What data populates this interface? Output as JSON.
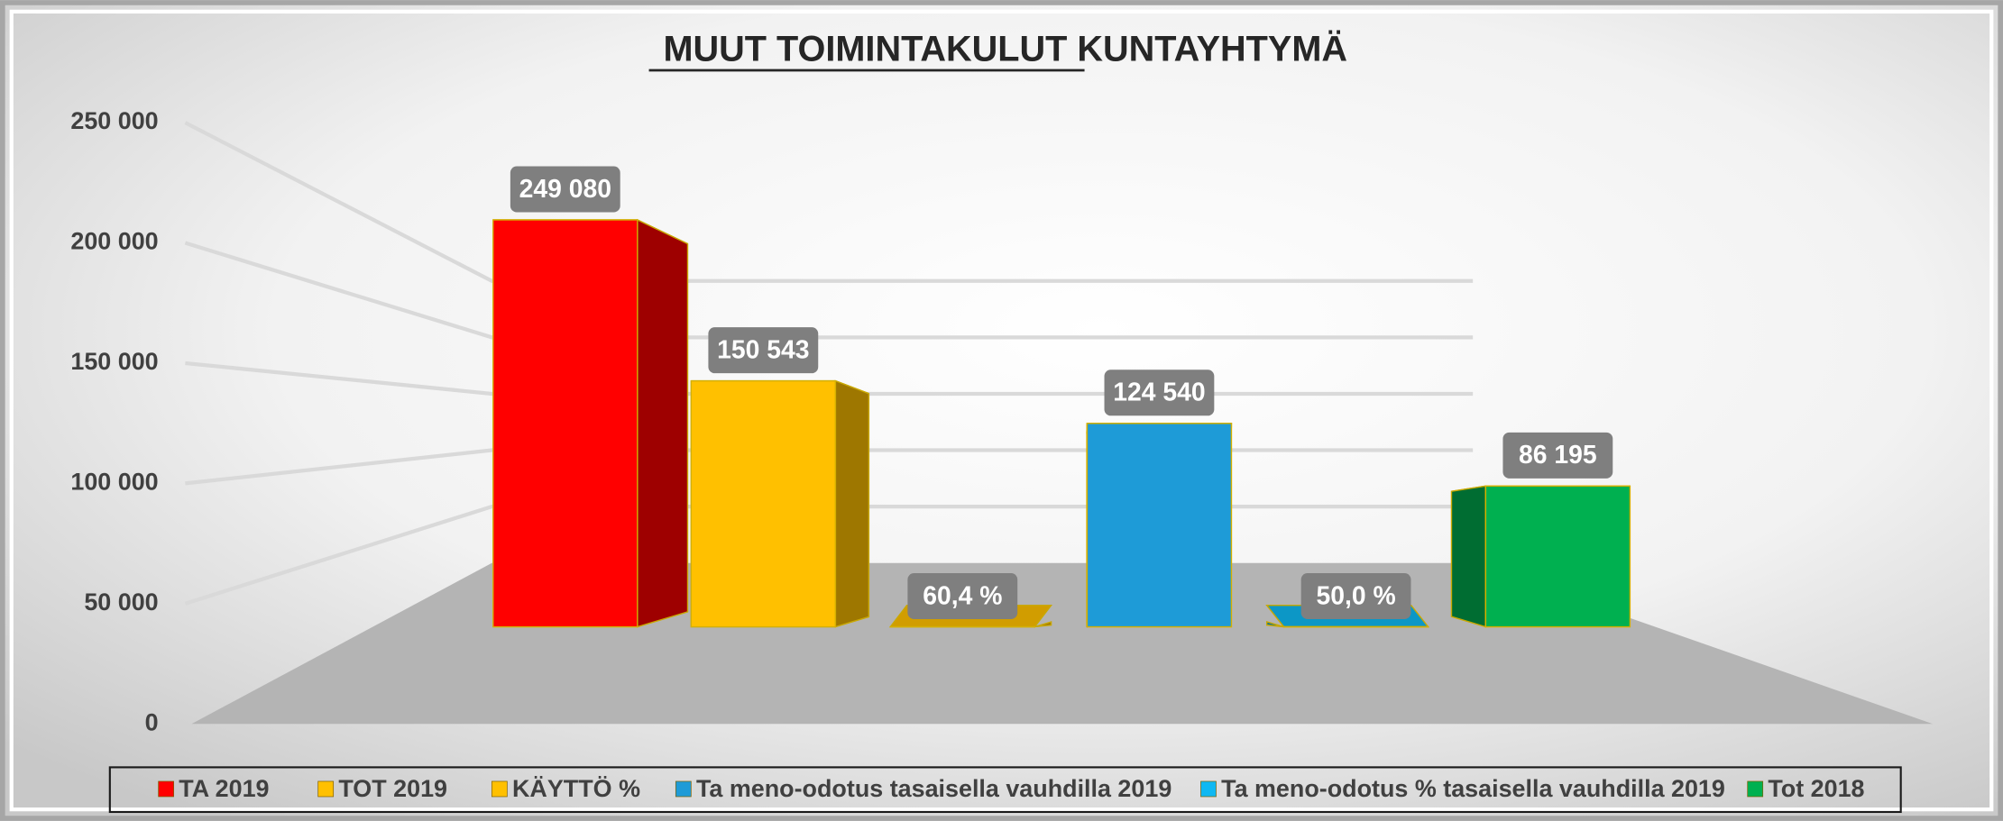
{
  "chart_data": {
    "type": "bar",
    "title": "MUUT TOIMINTAKULUT KUNTAYHTYMÄ",
    "series": [
      {
        "name": "TA 2019",
        "color": "#ff0000",
        "values": [
          249080
        ],
        "value_labels": [
          "249 080"
        ]
      },
      {
        "name": "TOT 2019",
        "color": "#ffc000",
        "values": [
          150543
        ],
        "value_labels": [
          "150 543"
        ]
      },
      {
        "name": "KÄYTTÖ %",
        "color": "#ffc000",
        "values": [
          60.4
        ],
        "value_labels": [
          "60,4 %"
        ]
      },
      {
        "name": "Ta meno-odotus tasaisella vauhdilla 2019",
        "color": "#1e9bd7",
        "values": [
          124540
        ],
        "value_labels": [
          "124 540"
        ]
      },
      {
        "name": "Ta meno-odotus % tasaisella vauhdilla 2019",
        "color": "#0fb8f2",
        "values": [
          50.0
        ],
        "value_labels": [
          "50,0 %"
        ]
      },
      {
        "name": "Tot 2018",
        "color": "#00b050",
        "values": [
          86195
        ],
        "value_labels": [
          "86 195"
        ]
      }
    ],
    "ylim": [
      0,
      250000
    ],
    "yticks": [
      0,
      {
        "value": 50000,
        "label": "50 000"
      },
      {
        "value": 100000,
        "label": "100 000"
      },
      {
        "value": 150000,
        "label": "150 000"
      },
      {
        "value": 200000,
        "label": "200 000"
      },
      {
        "value": 250000,
        "label": "250 000"
      }
    ],
    "grid": true,
    "legend": "bottom"
  }
}
